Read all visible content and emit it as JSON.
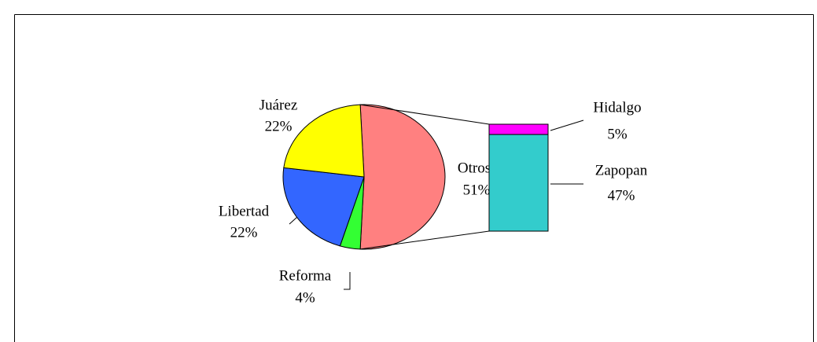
{
  "chart_data": {
    "type": "pie",
    "categories": [
      "Otros",
      "Reforma",
      "Libertad",
      "Juárez"
    ],
    "values": [
      51,
      4,
      22,
      22
    ],
    "value_labels": [
      "51%",
      "4%",
      "22%",
      "22%"
    ],
    "colors": [
      "#ff8080",
      "#33ff33",
      "#3366ff",
      "#ffff00"
    ],
    "detail": {
      "type": "bar",
      "categories": [
        "Hidalgo",
        "Zapopan"
      ],
      "values": [
        5,
        47
      ],
      "value_labels": [
        "5%",
        "47%"
      ],
      "colors": [
        "#ff00ff",
        "#33cccc"
      ]
    }
  }
}
